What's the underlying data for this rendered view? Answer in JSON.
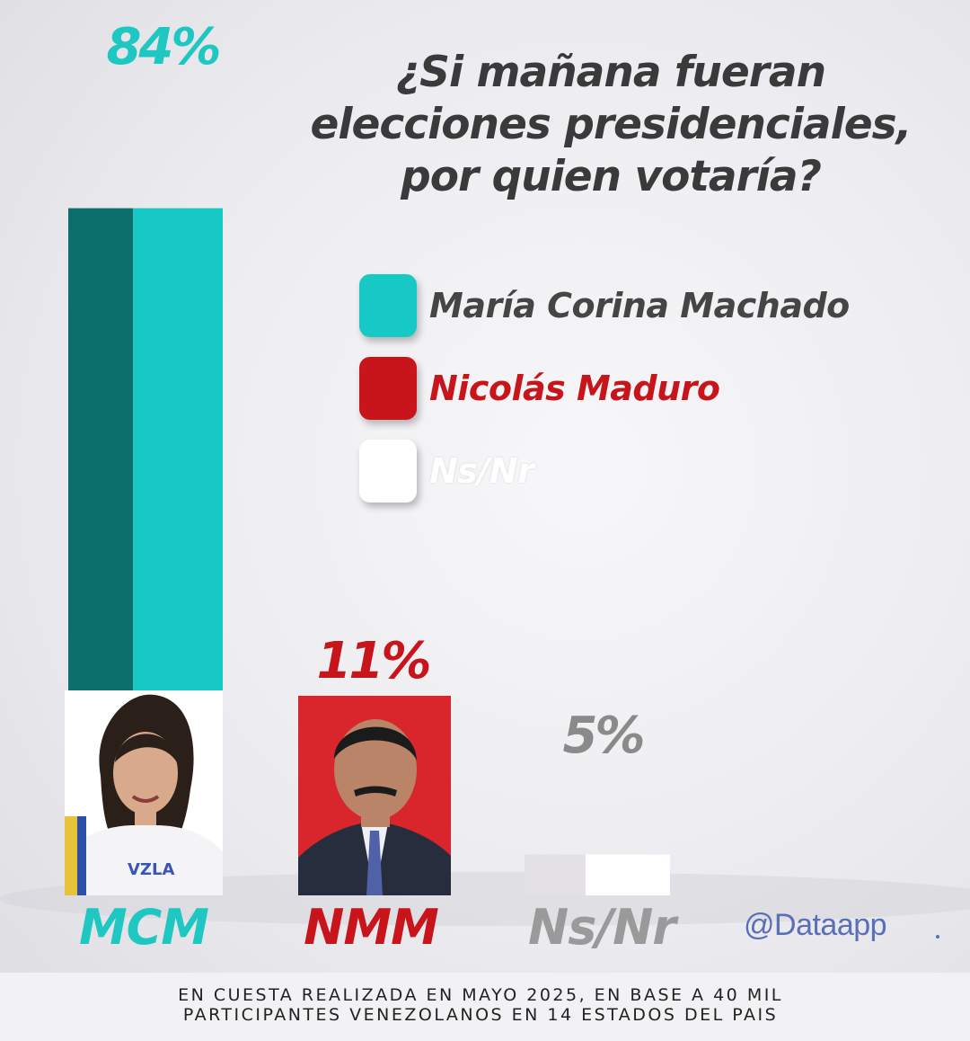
{
  "title_lines": [
    "¿Si mañana fueran",
    "elecciones presidenciales,",
    "por quien votaría?"
  ],
  "legend": [
    {
      "label": "María  Corina Machado",
      "color": "#17c9c4",
      "text_color": "#454545"
    },
    {
      "label": "Nicolás Maduro",
      "color": "#c8151b",
      "text_color": "#c8151b"
    },
    {
      "label": "Ns/Nr",
      "color": "#ffffff",
      "text_color": "#ffffff"
    }
  ],
  "chart_data": {
    "type": "bar",
    "categories": [
      "MCM",
      "NMM",
      "Ns/Nr"
    ],
    "values": [
      84,
      11,
      5
    ],
    "value_labels": [
      "84%",
      "11%",
      "5%"
    ],
    "colors": [
      "#17c9c4",
      "#d51e24",
      "#ffffff"
    ],
    "label_colors": [
      "#1ec7c1",
      "#c8151b",
      "#8a8a8a"
    ],
    "category_colors": [
      "#1ec7c1",
      "#c8151b",
      "#9a9a9a"
    ],
    "ylim": [
      0,
      100
    ]
  },
  "photos": [
    {
      "name": "candidate-photo-mcm",
      "icon": "woman-portrait-icon"
    },
    {
      "name": "candidate-photo-nmm",
      "icon": "man-portrait-icon"
    }
  ],
  "credit": "@Dataapp",
  "footer": {
    "line1": "EN CUESTA REALIZADA EN MAYO 2025, EN BASE A 40 MIL",
    "line2": "PARTICIPANTES VENEZOLANOS EN 14 ESTADOS DEL PAIS"
  }
}
